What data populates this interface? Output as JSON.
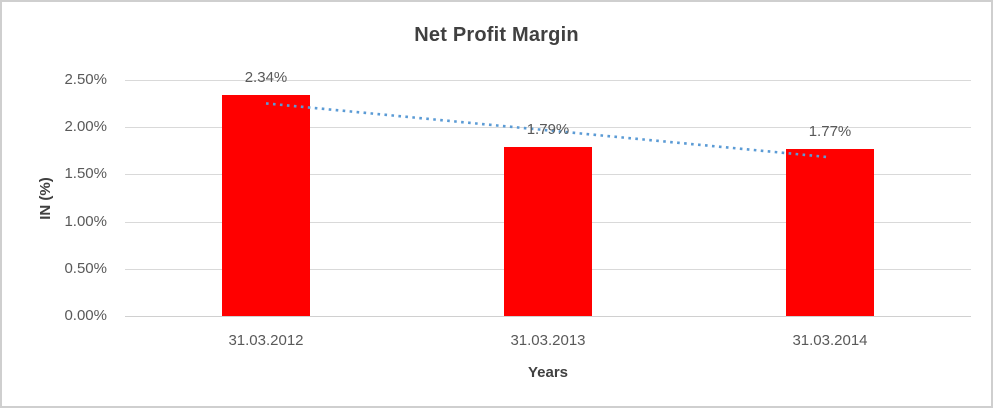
{
  "window": {
    "background_color": "#ffffff",
    "border_color": "#cfcfcf"
  },
  "chart_data": {
    "type": "bar",
    "title": "Net Profit Margin",
    "categories": [
      "31.03.2012",
      "31.03.2013",
      "31.03.2014"
    ],
    "series": [
      {
        "name": "Net Profit Margin",
        "values": [
          2.34,
          1.79,
          1.77
        ],
        "color": "#ff0000"
      }
    ],
    "data_labels": [
      "2.34%",
      "1.79%",
      "1.77%"
    ],
    "xlabel": "Years",
    "ylabel": "IN (%)",
    "ylim": [
      0,
      2.5
    ],
    "yticks": [
      {
        "value": 0.0,
        "label": "0.00%"
      },
      {
        "value": 0.5,
        "label": "0.50%"
      },
      {
        "value": 1.0,
        "label": "1.00%"
      },
      {
        "value": 1.5,
        "label": "1.50%"
      },
      {
        "value": 2.0,
        "label": "2.00%"
      },
      {
        "value": 2.5,
        "label": "2.50%"
      }
    ],
    "grid": true,
    "legend": "none",
    "trendline": {
      "kind": "linear",
      "style": "dotted",
      "color": "#5b9bd5"
    },
    "colors": {
      "bar": "#ff0000",
      "trendline": "#5b9bd5",
      "gridline": "#d9d9d9",
      "title_text": "#404040",
      "tick_text": "#595959"
    }
  }
}
